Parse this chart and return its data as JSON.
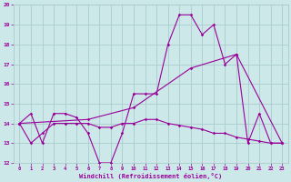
{
  "xlabel": "Windchill (Refroidissement éolien,°C)",
  "bg_color": "#cce8e8",
  "grid_color": "#aacccc",
  "line_color": "#990099",
  "xlim": [
    -0.5,
    23.5
  ],
  "ylim": [
    12,
    20
  ],
  "yticks": [
    12,
    13,
    14,
    15,
    16,
    17,
    18,
    19,
    20
  ],
  "xticks": [
    0,
    1,
    2,
    3,
    4,
    5,
    6,
    7,
    8,
    9,
    10,
    11,
    12,
    13,
    14,
    15,
    16,
    17,
    18,
    19,
    20,
    21,
    22,
    23
  ],
  "line1_x": [
    0,
    1,
    2,
    3,
    4,
    5,
    6,
    7,
    8,
    9,
    10,
    11,
    12,
    13,
    14,
    15,
    16,
    17,
    18,
    19,
    20,
    21,
    22,
    23
  ],
  "line1_y": [
    14.0,
    14.5,
    13.0,
    14.5,
    14.5,
    14.3,
    13.5,
    12.0,
    12.0,
    13.5,
    15.5,
    15.5,
    15.5,
    18.0,
    19.5,
    19.5,
    18.5,
    19.0,
    17.0,
    17.5,
    13.0,
    14.5,
    13.0,
    13.0
  ],
  "line2_x": [
    0,
    1,
    2,
    3,
    4,
    5,
    6,
    7,
    8,
    9,
    10,
    11,
    12,
    13,
    14,
    15,
    16,
    17,
    18,
    19,
    20,
    21,
    22,
    23
  ],
  "line2_y": [
    14.0,
    13.0,
    13.5,
    14.0,
    14.0,
    14.0,
    14.0,
    13.8,
    13.8,
    14.0,
    14.0,
    14.2,
    14.2,
    14.0,
    13.9,
    13.8,
    13.7,
    13.5,
    13.5,
    13.3,
    13.2,
    13.1,
    13.0,
    13.0
  ],
  "line3_x": [
    0,
    6,
    10,
    15,
    19,
    23
  ],
  "line3_y": [
    14.0,
    14.2,
    14.8,
    16.8,
    17.5,
    13.0
  ]
}
